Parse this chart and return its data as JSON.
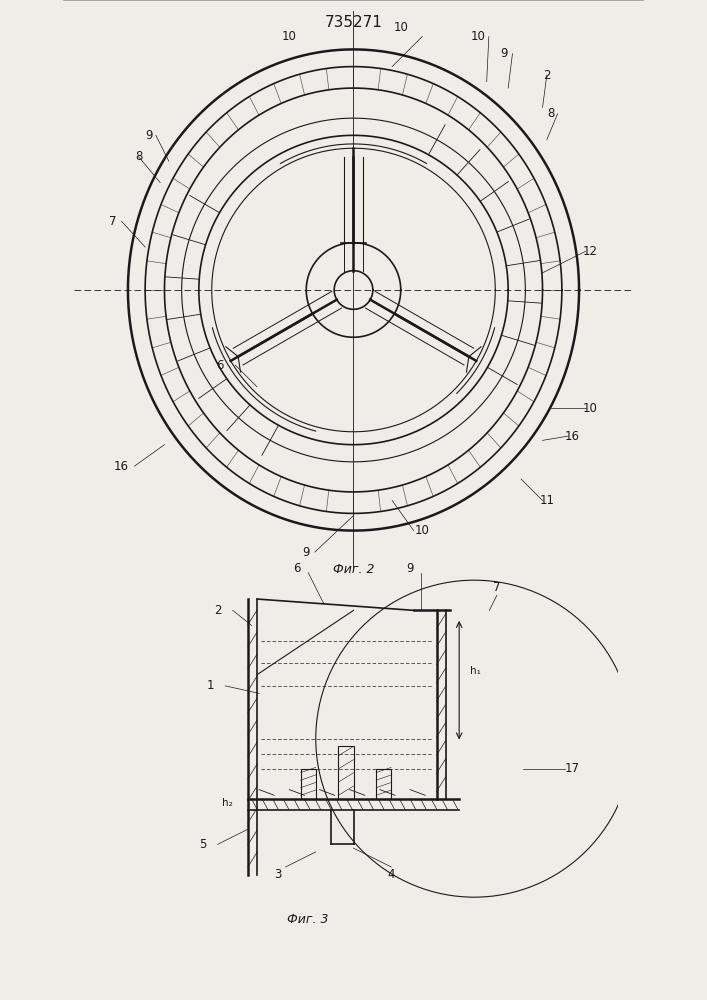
{
  "title": "735271",
  "fig2_label": "Фиг. 2",
  "fig3_label": "Фиг. 3",
  "bg_color": "#f0ede8",
  "line_color": "#1a1a1a",
  "hatch_color": "#1a1a1a"
}
